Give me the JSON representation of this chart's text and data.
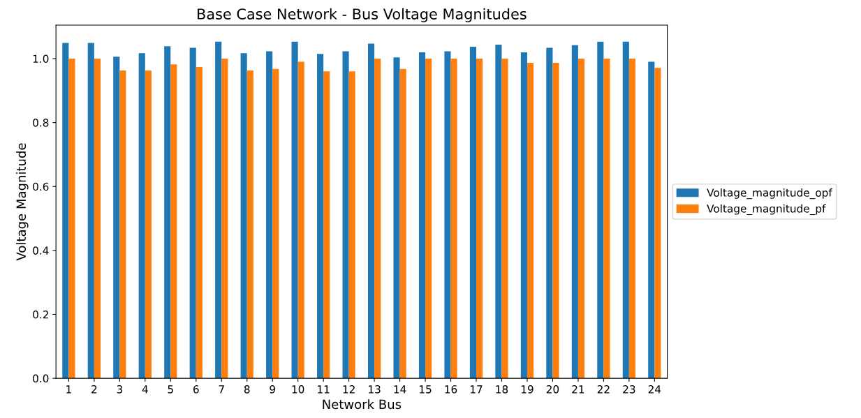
{
  "chart_data": {
    "type": "bar",
    "title": "Base Case Network - Bus Voltage Magnitudes",
    "xlabel": "Network Bus",
    "ylabel": "Voltage Magnitude",
    "categories": [
      "1",
      "2",
      "3",
      "4",
      "5",
      "6",
      "7",
      "8",
      "9",
      "10",
      "11",
      "12",
      "13",
      "14",
      "15",
      "16",
      "17",
      "18",
      "19",
      "20",
      "21",
      "22",
      "23",
      "24"
    ],
    "series": [
      {
        "name": "Voltage_magnitude_opf",
        "color": "#1f77b4",
        "values": [
          1.049,
          1.049,
          1.006,
          1.017,
          1.039,
          1.034,
          1.053,
          1.017,
          1.023,
          1.053,
          1.015,
          1.023,
          1.047,
          1.004,
          1.02,
          1.023,
          1.037,
          1.044,
          1.02,
          1.034,
          1.042,
          1.053,
          1.053,
          0.99
        ]
      },
      {
        "name": "Voltage_magnitude_pf",
        "color": "#ff7f0e",
        "values": [
          1.0,
          1.0,
          0.963,
          0.963,
          0.982,
          0.974,
          1.0,
          0.963,
          0.968,
          0.99,
          0.96,
          0.96,
          1.0,
          0.968,
          1.0,
          1.0,
          1.0,
          1.0,
          0.987,
          0.987,
          1.0,
          1.0,
          1.0,
          0.971
        ]
      }
    ],
    "ylim": [
      0,
      1.105
    ],
    "yticks": [
      {
        "value": 0,
        "label": "0.0"
      },
      0.2,
      0.4,
      0.6,
      0.8,
      {
        "value": 1,
        "label": "1.0"
      }
    ],
    "grid": false,
    "legend": "right"
  }
}
